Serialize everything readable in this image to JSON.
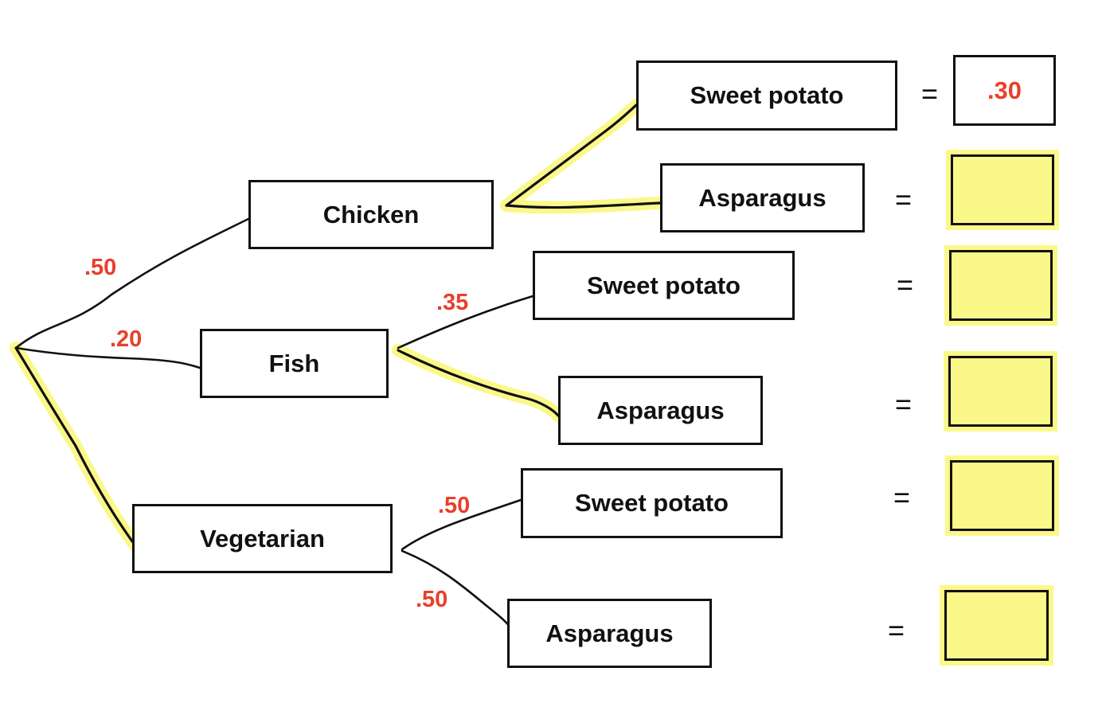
{
  "colors": {
    "probability": "#e8402a",
    "highlight": "#fbf88a",
    "ink": "#111111"
  },
  "root": {
    "label": ""
  },
  "mains": [
    {
      "id": "chicken",
      "label": "Chicken",
      "prob": ".50",
      "highlighted": false
    },
    {
      "id": "fish",
      "label": "Fish",
      "prob": ".20",
      "highlighted": false
    },
    {
      "id": "vegetarian",
      "label": "Vegetarian",
      "prob": "",
      "highlighted": true
    }
  ],
  "sides": [
    {
      "parent": "chicken",
      "label": "Sweet potato",
      "prob": "",
      "highlighted": true
    },
    {
      "parent": "chicken",
      "label": "Asparagus",
      "prob": "",
      "highlighted": true
    },
    {
      "parent": "fish",
      "label": "Sweet potato",
      "prob": ".35",
      "highlighted": false
    },
    {
      "parent": "fish",
      "label": "Asparagus",
      "prob": "",
      "highlighted": true
    },
    {
      "parent": "vegetarian",
      "label": "Sweet potato",
      "prob": ".50",
      "highlighted": false
    },
    {
      "parent": "vegetarian",
      "label": "Asparagus",
      "prob": ".50",
      "highlighted": false
    }
  ],
  "equals_sign": "=",
  "results": [
    {
      "value": ".30",
      "filled": false
    },
    {
      "value": "",
      "filled": true
    },
    {
      "value": "",
      "filled": true
    },
    {
      "value": "",
      "filled": true
    },
    {
      "value": "",
      "filled": true
    },
    {
      "value": "",
      "filled": true
    }
  ]
}
